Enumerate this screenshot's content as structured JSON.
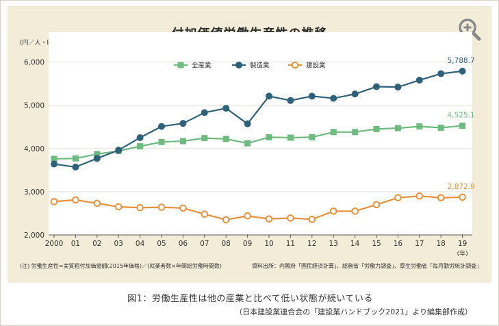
{
  "chart_data": {
    "type": "line",
    "title": "付加価値労働生産性の推移",
    "ylabel": "(円／人・時間)",
    "xlabel": "(年)",
    "ylim": [
      2000,
      6500
    ],
    "yticks": [
      2000,
      3000,
      4000,
      5000,
      6000
    ],
    "ytick_labels": [
      "2,000",
      "3,000",
      "4,000",
      "5,000",
      "6,000"
    ],
    "categories": [
      "2000",
      "01",
      "02",
      "03",
      "04",
      "05",
      "06",
      "07",
      "08",
      "09",
      "10",
      "11",
      "12",
      "13",
      "14",
      "15",
      "16",
      "17",
      "18",
      "19"
    ],
    "legend_position": "top-center",
    "series": [
      {
        "name": "全産業",
        "color": "#6dbb7e",
        "marker": "square",
        "values": [
          3760,
          3770,
          3870,
          3940,
          4050,
          4150,
          4170,
          4240,
          4220,
          4120,
          4260,
          4250,
          4260,
          4380,
          4380,
          4450,
          4470,
          4510,
          4480,
          4525.1
        ],
        "end_label": "4,525.1"
      },
      {
        "name": "製造業",
        "color": "#30617b",
        "marker": "circle",
        "values": [
          3640,
          3570,
          3770,
          3960,
          4250,
          4510,
          4580,
          4830,
          4930,
          4570,
          5210,
          5110,
          5210,
          5160,
          5260,
          5430,
          5420,
          5580,
          5730,
          5788.7
        ],
        "end_label": "5,788.7"
      },
      {
        "name": "建設業",
        "color": "#e8913c",
        "marker": "hollow-circle",
        "values": [
          2770,
          2810,
          2730,
          2650,
          2630,
          2640,
          2620,
          2480,
          2350,
          2440,
          2370,
          2390,
          2360,
          2550,
          2550,
          2700,
          2860,
          2900,
          2860,
          2872.9
        ],
        "end_label": "2,872.9"
      }
    ]
  },
  "unit_label": "(円／人・時間)",
  "note_left": "(注) 労働生産性=実質粗付加価値額(2015年価格)／(就業者数×年間総労働時間数)",
  "note_right": "資料出所：内閣府「国民経済計算」、総務省「労働力調査」、厚生労働省「毎月勤労統計調査」",
  "caption": "図1：労働生産性は他の産業と比べて低い状態が続いている",
  "caption_sub": "（日本建設業連合会の「建設業ハンドブック2021」より編集部作成）",
  "zoom_icon": "zoom-in-icon"
}
